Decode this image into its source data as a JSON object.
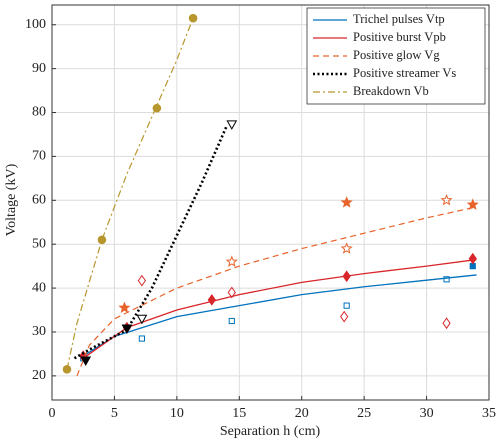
{
  "chart_data": {
    "type": "line",
    "xlabel": "Separation h (cm)",
    "ylabel": "Voltage (kV)",
    "xlim": [
      0,
      35
    ],
    "ylim": [
      14.5,
      104.5
    ],
    "xticks": [
      0,
      5,
      10,
      15,
      20,
      25,
      30,
      35
    ],
    "yticks": [
      20,
      30,
      40,
      50,
      60,
      70,
      80,
      90,
      100
    ],
    "grid": true,
    "legend": "upper right",
    "series": [
      {
        "name": "Trichel pulses Vtp",
        "color": "#0072bd",
        "dash": "solid",
        "marker": "square",
        "x": [
          2.5,
          5,
          10,
          15,
          20,
          25,
          30,
          34
        ],
        "values": [
          24.5,
          29,
          33.5,
          36,
          38.5,
          40.3,
          41.8,
          43
        ],
        "points": {
          "x": [
            33.7
          ],
          "values": [
            45
          ]
        },
        "open_points": {
          "x": [
            2.5,
            7.2,
            14.4,
            23.6,
            31.6
          ],
          "values": [
            24,
            28.5,
            32.5,
            36,
            42
          ]
        }
      },
      {
        "name": "Positive burst Vpb",
        "color": "#d9262a",
        "dash": "solid",
        "marker": "diamond",
        "x": [
          2.5,
          6,
          10,
          15,
          20,
          25,
          30,
          34
        ],
        "values": [
          24,
          31,
          35,
          38.5,
          41.3,
          43.3,
          45,
          46.5
        ],
        "points": {
          "x": [
            2.5,
            6,
            12.8,
            23.6,
            33.7
          ],
          "values": [
            24.5,
            31,
            37.3,
            42.7,
            46.7
          ]
        },
        "open_points": {
          "x": [
            7.2,
            14.4,
            23.4,
            31.6
          ],
          "values": [
            41.7,
            39,
            33.5,
            32
          ]
        }
      },
      {
        "name": "Positive glow Vg",
        "color": "#e8632b",
        "dash": "dashed",
        "marker": "star",
        "x": [
          2,
          3,
          5,
          10,
          15,
          20,
          25,
          30,
          34
        ],
        "values": [
          20,
          27,
          33,
          40,
          45,
          49,
          52.5,
          56,
          58.5
        ],
        "points": {
          "x": [
            5.8,
            23.6,
            33.7
          ],
          "values": [
            35.5,
            59.5,
            59
          ]
        },
        "open_points": {
          "x": [
            14.4,
            23.6,
            31.6
          ],
          "values": [
            46,
            49,
            60
          ]
        }
      },
      {
        "name": "Positive streamer Vs",
        "color": "#000000",
        "dash": "dotted",
        "marker": "triangle-down",
        "x": [
          1.8,
          3,
          6,
          8,
          10,
          12,
          14
        ],
        "values": [
          24,
          26,
          30.5,
          40,
          52,
          64,
          77
        ],
        "points": {
          "x": [
            2.7,
            6
          ],
          "values": [
            23.5,
            30.8
          ]
        },
        "open_points": {
          "x": [
            7.2,
            14.4
          ],
          "values": [
            33,
            77.3
          ]
        }
      },
      {
        "name": "Breakdown Vb",
        "color": "#b8962e",
        "dash": "dashdot",
        "marker": "circle",
        "x": [
          1.2,
          2,
          4,
          6,
          8,
          10,
          11.3
        ],
        "values": [
          21.5,
          32,
          51,
          66,
          79,
          92,
          101.5
        ],
        "points": {
          "x": [
            1.2,
            4,
            8.4,
            11.3
          ],
          "values": [
            21.5,
            51,
            81,
            101.5
          ]
        },
        "open_points": {
          "x": [],
          "values": []
        }
      }
    ]
  }
}
